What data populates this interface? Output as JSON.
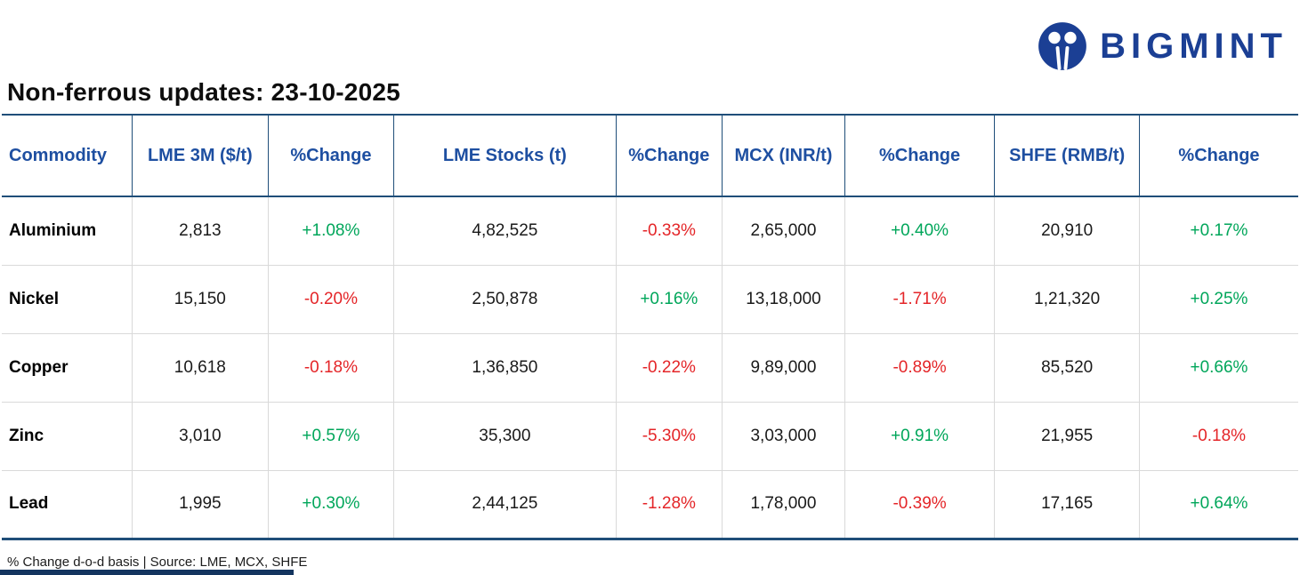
{
  "brand": {
    "name": "BIGMINT",
    "logo_color": "#1b3f94"
  },
  "page_title": "Non-ferrous updates: 23-10-2025",
  "table": {
    "columns": [
      "Commodity",
      "LME 3M ($/t)",
      "%Change",
      "LME Stocks (t)",
      "%Change",
      "MCX (INR/t)",
      "%Change",
      "SHFE (RMB/t)",
      "%Change"
    ],
    "rows": [
      [
        "Aluminium",
        "2,813",
        "+1.08%",
        "4,82,525",
        "-0.33%",
        "2,65,000",
        "+0.40%",
        "20,910",
        "+0.17%"
      ],
      [
        "Nickel",
        "15,150",
        "-0.20%",
        "2,50,878",
        "+0.16%",
        "13,18,000",
        "-1.71%",
        "1,21,320",
        "+0.25%"
      ],
      [
        "Copper",
        "10,618",
        "-0.18%",
        "1,36,850",
        "-0.22%",
        "9,89,000",
        "-0.89%",
        "85,520",
        "+0.66%"
      ],
      [
        "Zinc",
        "3,010",
        "+0.57%",
        "35,300",
        "-5.30%",
        "3,03,000",
        "+0.91%",
        "21,955",
        "-0.18%"
      ],
      [
        "Lead",
        "1,995",
        "+0.30%",
        "2,44,125",
        "-1.28%",
        "1,78,000",
        "-0.39%",
        "17,165",
        "+0.64%"
      ]
    ]
  },
  "footnote": "% Change d-o-d basis | Source: LME, MCX, SHFE",
  "colors": {
    "positive": "#00a65a",
    "negative": "#e42528",
    "header_text": "#1e4fa1",
    "table_border": "#1f4e79",
    "brand_navy": "#1b3f94"
  }
}
